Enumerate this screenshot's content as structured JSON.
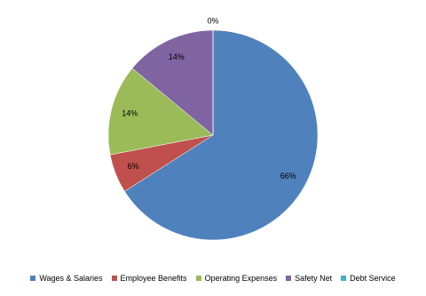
{
  "chart_data": {
    "type": "pie",
    "categories": [
      "Wages & Salaries",
      "Employee Benefits",
      "Operating Expenses",
      "Safety Net",
      "Debt Service"
    ],
    "values": [
      66,
      6,
      14,
      14,
      0
    ],
    "value_labels": [
      "66%",
      "6%",
      "14%",
      "14%",
      "0%"
    ],
    "colors": [
      "#4f81bd",
      "#c0504d",
      "#9bbb59",
      "#8064a2",
      "#4bacc6"
    ],
    "legend": "bottom"
  }
}
